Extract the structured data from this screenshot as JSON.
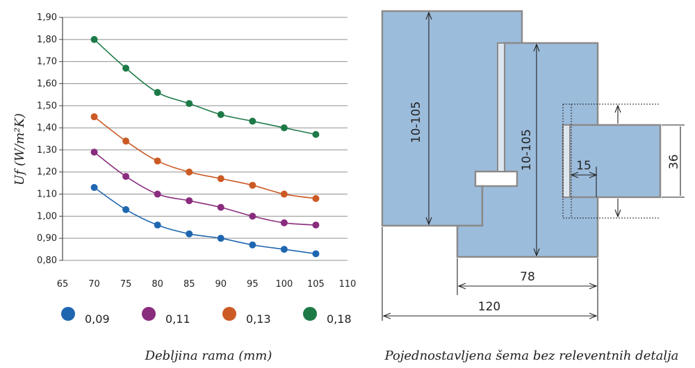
{
  "chart_data": {
    "type": "line",
    "title": "",
    "xlabel": "Debljina rama (mm)",
    "ylabel": "Uf (W/m²K)",
    "xlim": [
      65,
      110
    ],
    "ylim": [
      0.8,
      1.9
    ],
    "x_ticks": [
      "65",
      "70",
      "75",
      "80",
      "85",
      "90",
      "95",
      "100",
      "105",
      "110"
    ],
    "y_ticks": [
      "0,80",
      "0,90",
      "1,00",
      "1,10",
      "1,20",
      "1,30",
      "1,40",
      "1,50",
      "1,60",
      "1,70",
      "1,80",
      "1,90"
    ],
    "x": [
      70,
      75,
      80,
      85,
      90,
      95,
      100,
      105
    ],
    "grid": "horizontal",
    "legend_position": "bottom",
    "series": [
      {
        "name": "0,09",
        "color": "#1f66b0",
        "values": [
          1.13,
          1.03,
          0.96,
          0.92,
          0.9,
          0.87,
          0.85,
          0.83
        ]
      },
      {
        "name": "0,11",
        "color": "#8a2c7e",
        "values": [
          1.29,
          1.18,
          1.1,
          1.07,
          1.04,
          1.0,
          0.97,
          0.96
        ]
      },
      {
        "name": "0,13",
        "color": "#cc5a24",
        "values": [
          1.45,
          1.34,
          1.25,
          1.2,
          1.17,
          1.14,
          1.1,
          1.08
        ]
      },
      {
        "name": "0,18",
        "color": "#1d7a47",
        "values": [
          1.8,
          1.67,
          1.56,
          1.51,
          1.46,
          1.43,
          1.4,
          1.37
        ]
      }
    ]
  },
  "diagram": {
    "caption": "Pojednostavljena šema bez releventnih detalja",
    "block_color": "#9cbcdc",
    "dim_left_height": "10-105",
    "dim_center_height": "10-105",
    "dim_gap": "15",
    "dim_glass": "36",
    "dim_inner_width": "78",
    "dim_total_width": "120"
  }
}
